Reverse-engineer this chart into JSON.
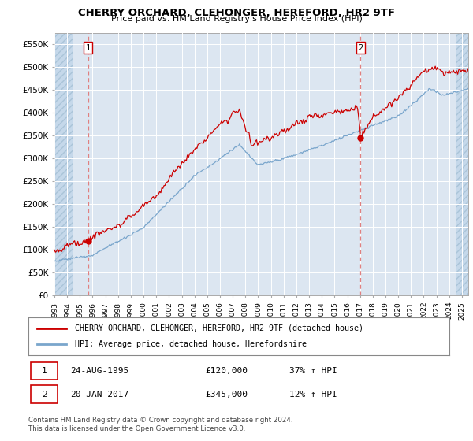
{
  "title": "CHERRY ORCHARD, CLEHONGER, HEREFORD, HR2 9TF",
  "subtitle": "Price paid vs. HM Land Registry's House Price Index (HPI)",
  "legend_line1": "CHERRY ORCHARD, CLEHONGER, HEREFORD, HR2 9TF (detached house)",
  "legend_line2": "HPI: Average price, detached house, Herefordshire",
  "annotation1_date": "24-AUG-1995",
  "annotation1_price": "£120,000",
  "annotation1_hpi": "37% ↑ HPI",
  "annotation2_date": "20-JAN-2017",
  "annotation2_price": "£345,000",
  "annotation2_hpi": "12% ↑ HPI",
  "footnote1": "Contains HM Land Registry data © Crown copyright and database right 2024.",
  "footnote2": "This data is licensed under the Open Government Licence v3.0.",
  "xmin": 1993.0,
  "xmax": 2025.5,
  "ymin": 0,
  "ymax": 575000,
  "yticks": [
    0,
    50000,
    100000,
    150000,
    200000,
    250000,
    300000,
    350000,
    400000,
    450000,
    500000,
    550000
  ],
  "ylabels": [
    "£0",
    "£50K",
    "£100K",
    "£150K",
    "£200K",
    "£250K",
    "£300K",
    "£350K",
    "£400K",
    "£450K",
    "£500K",
    "£550K"
  ],
  "xticks": [
    1993,
    1994,
    1995,
    1996,
    1997,
    1998,
    1999,
    2000,
    2001,
    2002,
    2003,
    2004,
    2005,
    2006,
    2007,
    2008,
    2009,
    2010,
    2011,
    2012,
    2013,
    2014,
    2015,
    2016,
    2017,
    2018,
    2019,
    2020,
    2021,
    2022,
    2023,
    2024,
    2025
  ],
  "plot_bg_color": "#dce6f1",
  "hatch_bg_color": "#c5d8ea",
  "grid_color": "#ffffff",
  "hpi_line_color": "#7aa6cc",
  "price_line_color": "#cc0000",
  "sale1_x": 1995.64,
  "sale1_y": 120000,
  "sale2_x": 2017.05,
  "sale2_y": 345000,
  "marker_color": "#cc0000",
  "dashed_line_color": "#e08080",
  "hatch_left_end": 1994.5,
  "hatch_right_start": 2024.5
}
